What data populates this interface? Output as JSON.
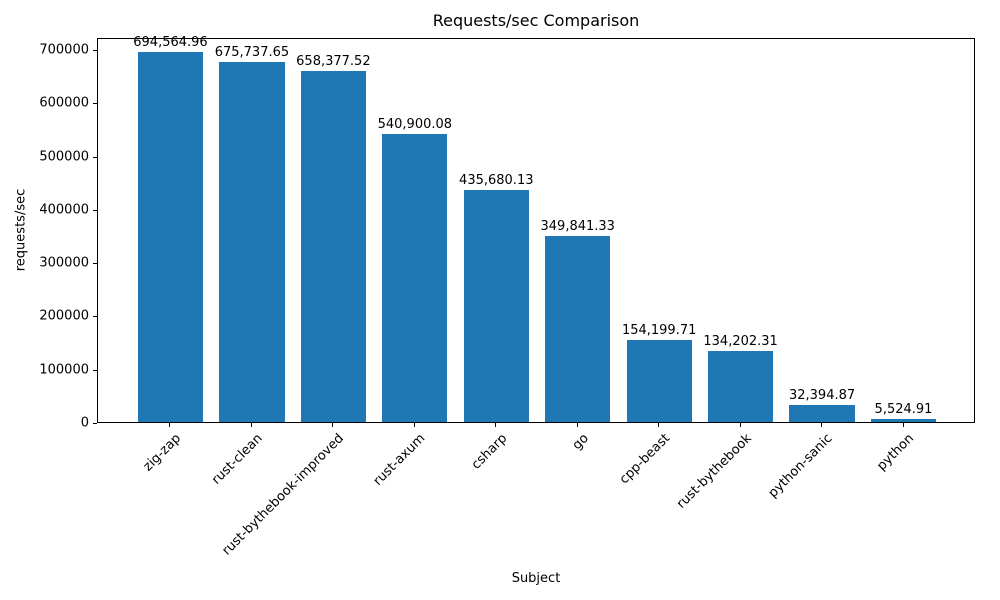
{
  "chart_data": {
    "type": "bar",
    "title": "Requests/sec Comparison",
    "xlabel": "Subject",
    "ylabel": "requests/sec",
    "categories": [
      "zig-zap",
      "rust-clean",
      "rust-bythebook-improved",
      "rust-axum",
      "csharp",
      "go",
      "cpp-beast",
      "rust-bythebook",
      "python-sanic",
      "python"
    ],
    "values": [
      694564.96,
      675737.65,
      658377.52,
      540900.08,
      435680.13,
      349841.33,
      154199.71,
      134202.31,
      32394.87,
      5524.91
    ],
    "value_labels": [
      "694,564.96",
      "675,737.65",
      "658,377.52",
      "540,900.08",
      "435,680.13",
      "349,841.33",
      "154,199.71",
      "134,202.31",
      "32,394.87",
      "5,524.91"
    ],
    "y_ticks": [
      0,
      100000,
      200000,
      300000,
      400000,
      500000,
      600000,
      700000
    ],
    "y_tick_labels": [
      "0",
      "100000",
      "200000",
      "300000",
      "400000",
      "500000",
      "600000",
      "700000"
    ],
    "ylim": [
      0,
      722500
    ],
    "bar_color": "#1f77b4",
    "grid": false,
    "legend": null
  }
}
